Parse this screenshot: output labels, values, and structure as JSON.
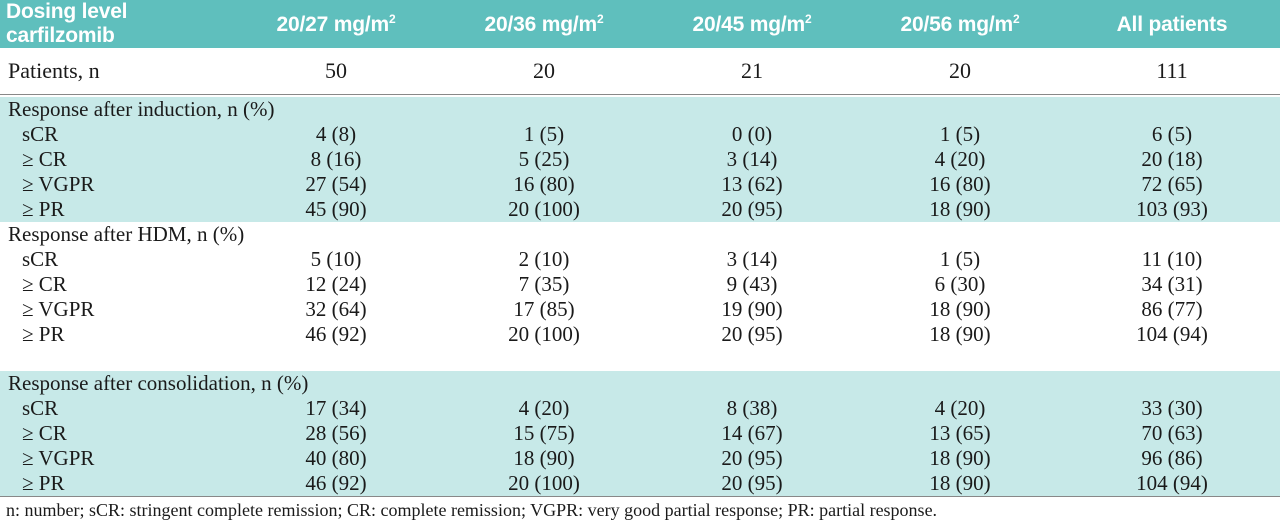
{
  "header": {
    "first": "Dosing level carfilzomib",
    "cols": [
      {
        "base": "20/27 mg/m",
        "sup": "2"
      },
      {
        "base": "20/36 mg/m",
        "sup": "2"
      },
      {
        "base": "20/45 mg/m",
        "sup": "2"
      },
      {
        "base": "20/56 mg/m",
        "sup": "2"
      },
      {
        "base": "All patients",
        "sup": ""
      }
    ]
  },
  "patients": {
    "label": "Patients, n",
    "values": [
      "50",
      "20",
      "21",
      "20",
      "111"
    ]
  },
  "sections": [
    {
      "title": "Response after induction, n (%)",
      "rows": [
        {
          "label": "sCR",
          "values": [
            "4 (8)",
            "1 (5)",
            "0 (0)",
            "1 (5)",
            "6 (5)"
          ]
        },
        {
          "label": "≥ CR",
          "values": [
            "8 (16)",
            "5 (25)",
            "3 (14)",
            "4 (20)",
            "20 (18)"
          ]
        },
        {
          "label": "≥ VGPR",
          "values": [
            "27 (54)",
            "16 (80)",
            "13 (62)",
            "16 (80)",
            "72 (65)"
          ]
        },
        {
          "label": "≥ PR",
          "values": [
            "45 (90)",
            "20 (100)",
            "20 (95)",
            "18 (90)",
            "103 (93)"
          ]
        }
      ]
    },
    {
      "title": "Response after HDM, n (%)",
      "rows": [
        {
          "label": "sCR",
          "values": [
            "5 (10)",
            "2 (10)",
            "3 (14)",
            "1 (5)",
            "11 (10)"
          ]
        },
        {
          "label": "≥ CR",
          "values": [
            "12 (24)",
            "7 (35)",
            "9 (43)",
            "6 (30)",
            "34 (31)"
          ]
        },
        {
          "label": "≥ VGPR",
          "values": [
            "32 (64)",
            "17 (85)",
            "19 (90)",
            "18 (90)",
            "86 (77)"
          ]
        },
        {
          "label": "≥ PR",
          "values": [
            "46 (92)",
            "20 (100)",
            "20 (95)",
            "18 (90)",
            "104 (94)"
          ]
        }
      ]
    },
    {
      "title": "Response after consolidation, n (%)",
      "rows": [
        {
          "label": "sCR",
          "values": [
            "17 (34)",
            "4 (20)",
            "8 (38)",
            "4 (20)",
            "33 (30)"
          ]
        },
        {
          "label": "≥ CR",
          "values": [
            "28 (56)",
            "15 (75)",
            "14 (67)",
            "13 (65)",
            "70 (63)"
          ]
        },
        {
          "label": "≥ VGPR",
          "values": [
            "40 (80)",
            "18 (90)",
            "20 (95)",
            "18 (90)",
            "96 (86)"
          ]
        },
        {
          "label": "≥ PR",
          "values": [
            "46 (92)",
            "20 (100)",
            "20 (95)",
            "18 (90)",
            "104 (94)"
          ]
        }
      ]
    }
  ],
  "footnote": "n: number; sCR: stringent complete remission; CR: complete remission; VGPR: very good partial response; PR: partial response.",
  "colors": {
    "header_bg": "#5fbfbd",
    "shade_bg": "#c7e9e8"
  }
}
